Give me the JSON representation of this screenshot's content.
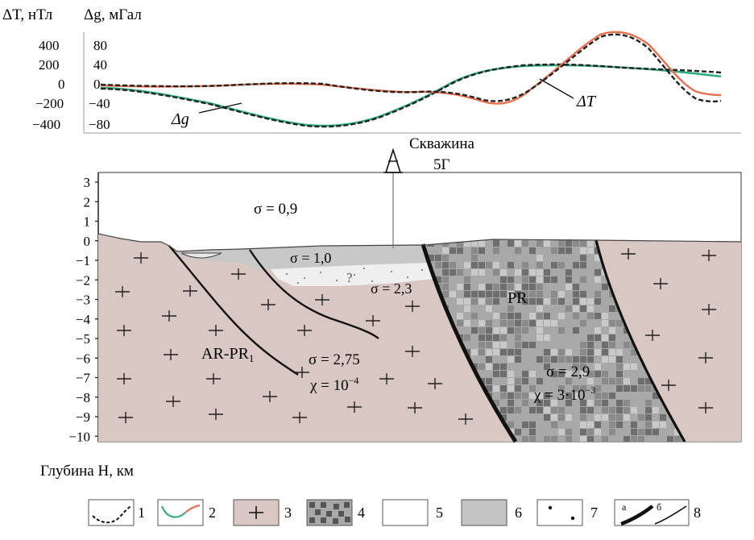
{
  "chart_data": {
    "type": "line",
    "left_axis_label": "ΔT, нТл",
    "right_axis_label": "Δg, мГал",
    "delta_t_ticks": [
      "400",
      "200",
      "0",
      "−200",
      "−400"
    ],
    "delta_g_ticks": [
      "80",
      "40",
      "0",
      "−40",
      "−80"
    ],
    "series": [
      {
        "name": "Δg",
        "color": "#2fae7e",
        "values_observed_vs_calculated": "green"
      },
      {
        "name": "ΔT",
        "color": "#ea6f4c",
        "values_observed_vs_calculated": "orange"
      }
    ],
    "observed_line_color": "#222222"
  },
  "section": {
    "depth_axis_label": "Глубина H, км",
    "depth_ticks": [
      "3",
      "2",
      "1",
      "0",
      "−1",
      "−2",
      "−3",
      "−4",
      "−5",
      "−6",
      "−7",
      "−8",
      "−9",
      "−10"
    ],
    "well": {
      "line1": "Скважина",
      "line2": "5Г"
    },
    "labels": {
      "air_sigma": "σ = 0,9",
      "sed_sigma": "σ = 1,0",
      "sand_sigma": "σ = 2,3",
      "question": "?",
      "pr_name": "PR",
      "pr_sigma": "σ = 2,9",
      "pr_chi": "χ = 3·10",
      "pr_chi_exp": "−3",
      "ar_name": "AR-PR",
      "ar_sub": "1",
      "ar_sigma": "σ = 2,75",
      "ar_chi": "χ = 10",
      "ar_chi_exp": "−4"
    },
    "colors": {
      "basement": "#d8c7c3",
      "pr_block_base": "#a8a8a8",
      "sediment": "#c8c8c8",
      "sand": "#eeeeee"
    }
  },
  "legend": {
    "items": [
      {
        "num": "1",
        "icon": "observed-curve-icon"
      },
      {
        "num": "2",
        "icon": "calculated-curve-icon"
      },
      {
        "num": "3",
        "icon": "basement-cross-icon"
      },
      {
        "num": "4",
        "icon": "checker-rock-icon"
      },
      {
        "num": "5",
        "icon": "white-fill-icon"
      },
      {
        "num": "6",
        "icon": "gray-fill-icon"
      },
      {
        "num": "7",
        "icon": "dots-fill-icon"
      },
      {
        "num": "8",
        "icon": "fault-lines-icon"
      }
    ],
    "fault_a": "а",
    "fault_b": "б"
  }
}
